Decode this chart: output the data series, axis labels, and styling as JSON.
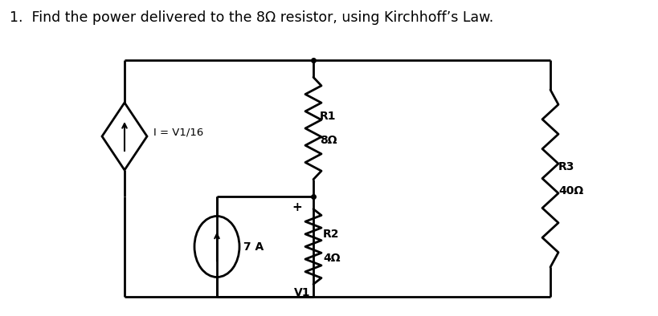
{
  "title": "1.  Find the power delivered to the 8Ω resistor, using Kirchhoff’s Law.",
  "title_fontsize": 12.5,
  "background_color": "#ffffff",
  "R1_label": "R1\n8Ω",
  "R2_label": "R2\n4Ω",
  "R3_label": "R3\n40Ω",
  "current_source_label": "7 A",
  "vccs_label": "I = V1/16",
  "V1_label": "V1",
  "plus_label": "+"
}
